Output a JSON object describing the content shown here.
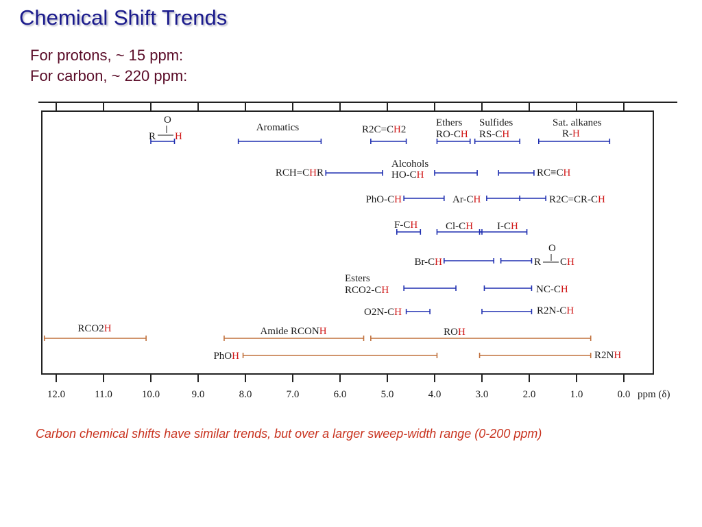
{
  "slide": {
    "title": "Chemical Shift Trends",
    "intro_lines": [
      "For protons, ~ 15 ppm:",
      "For carbon, ~ 220 ppm:"
    ],
    "caption": "Carbon chemical shifts have similar trends, but over a larger sweep-width range (0-200 ppm)"
  },
  "colors": {
    "proton": "#1f2fb0",
    "exchangeable": "#c0703c",
    "highlight": "#d01818",
    "title": "#1a1a8c"
  },
  "chart_data": {
    "type": "range",
    "x_axis": {
      "unit_label": "ppm (δ)",
      "reversed": true,
      "xlim": [
        12.35,
        -0.1
      ],
      "ticks": [
        12.0,
        11.0,
        10.0,
        9.0,
        8.0,
        7.0,
        6.0,
        5.0,
        4.0,
        3.0,
        2.0,
        1.0,
        0.0
      ],
      "tick_labels": [
        "12.0",
        "11.0",
        "10.0",
        "9.0",
        "8.0",
        "7.0",
        "6.0",
        "5.0",
        "4.0",
        "3.0",
        "2.0",
        "1.0",
        "0.0"
      ]
    },
    "groups": [
      {
        "label": [
          "R",
          "—",
          "C(=O)",
          "H"
        ],
        "label_parts": [
          [
            "R",
            0
          ],
          [
            "",
            0
          ]
        ],
        "text": "R—C(=O)H",
        "from": 10.0,
        "to": 9.5,
        "color": "proton",
        "row": 0
      },
      {
        "text": "Aromatics",
        "from": 8.15,
        "to": 6.4,
        "color": "proton",
        "row": 0
      },
      {
        "text": "R2C=CH2",
        "from": 5.35,
        "to": 4.6,
        "color": "proton",
        "row": 0
      },
      {
        "text": "Ethers RO-CH",
        "from": 3.95,
        "to": 3.25,
        "color": "proton",
        "row": 0
      },
      {
        "text": "Sulfides RS-CH",
        "from": 3.15,
        "to": 2.2,
        "color": "proton",
        "row": 0
      },
      {
        "text": "Sat. alkanes R-H",
        "from": 1.8,
        "to": 0.3,
        "color": "proton",
        "row": 0
      },
      {
        "text": "RCH=CHR",
        "from": 6.3,
        "to": 5.1,
        "color": "proton",
        "row": 1
      },
      {
        "text": "Alcohols HO-CH",
        "from": 4.0,
        "to": 3.1,
        "color": "proton",
        "row": 1
      },
      {
        "text": "RC≡CH",
        "from": 2.65,
        "to": 1.9,
        "color": "proton",
        "row": 1
      },
      {
        "text": "PhO-CH",
        "from": 4.65,
        "to": 3.8,
        "color": "proton",
        "row": 2
      },
      {
        "text": "Ar-CH",
        "from": 2.9,
        "to": 2.2,
        "color": "proton",
        "row": 2
      },
      {
        "text": "R2C=CR-CH",
        "from": 2.2,
        "to": 1.65,
        "color": "proton",
        "row": 2
      },
      {
        "text": "F-CH",
        "from": 4.8,
        "to": 4.3,
        "color": "proton",
        "row": 3
      },
      {
        "text": "Cl-CH",
        "from": 3.95,
        "to": 3.0,
        "color": "proton",
        "row": 3
      },
      {
        "text": "I-CH",
        "from": 3.05,
        "to": 2.05,
        "color": "proton",
        "row": 3
      },
      {
        "text": "Br-CH",
        "from": 3.8,
        "to": 2.75,
        "color": "proton",
        "row": 4
      },
      {
        "text": "R—C(=O)—CH",
        "from": 2.6,
        "to": 1.95,
        "color": "proton",
        "row": 4
      },
      {
        "text": "Esters RCO2-CH",
        "from": 4.65,
        "to": 3.55,
        "color": "proton",
        "row": 5
      },
      {
        "text": "NC-CH",
        "from": 2.95,
        "to": 1.95,
        "color": "proton",
        "row": 5
      },
      {
        "text": "O2N-CH",
        "from": 4.6,
        "to": 4.1,
        "color": "proton",
        "row": 6
      },
      {
        "text": "R2N-CH",
        "from": 3.0,
        "to": 1.95,
        "color": "proton",
        "row": 6
      },
      {
        "text": "RCO2H",
        "from": 12.25,
        "to": 10.1,
        "color": "exchangeable",
        "row": 7
      },
      {
        "text": "Amide RCONH",
        "from": 8.45,
        "to": 5.5,
        "color": "exchangeable",
        "row": 7
      },
      {
        "text": "ROH",
        "from": 5.35,
        "to": 0.7,
        "color": "exchangeable",
        "row": 7
      },
      {
        "text": "PhOH",
        "from": 8.05,
        "to": 3.95,
        "color": "exchangeable",
        "row": 8
      },
      {
        "text": "R2NH",
        "from": 3.05,
        "to": 0.7,
        "color": "exchangeable",
        "row": 8
      }
    ]
  }
}
